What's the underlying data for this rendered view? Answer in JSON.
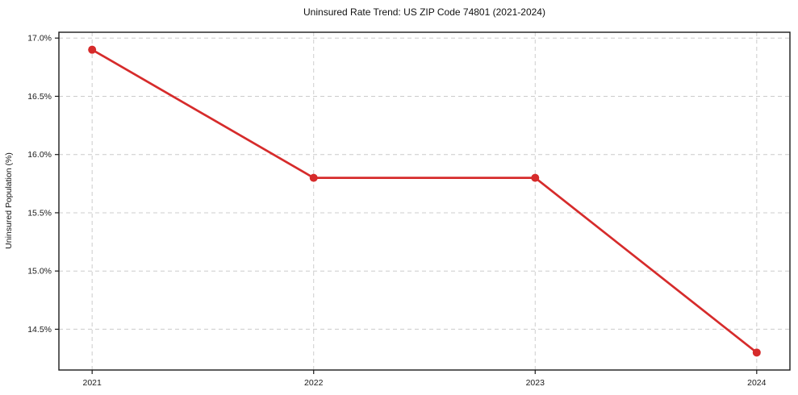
{
  "page": {
    "background": "#ffffff"
  },
  "chart_data": {
    "type": "line",
    "title": "Uninsured Rate Trend: US ZIP Code 74801 (2021-2024)",
    "xlabel": "",
    "ylabel": "Uninsured Population (%)",
    "x": [
      2021,
      2022,
      2023,
      2024
    ],
    "series": [
      {
        "name": "Uninsured rate",
        "values": [
          16.9,
          15.8,
          15.8,
          14.3
        ],
        "color": "#d62b2b"
      }
    ],
    "xlim": [
      2020.85,
      2024.15
    ],
    "ylim": [
      14.15,
      17.05
    ],
    "xticks": {
      "values": [
        2021,
        2022,
        2023,
        2024
      ],
      "labels": [
        "2021",
        "2022",
        "2023",
        "2024"
      ]
    },
    "yticks": {
      "values": [
        14.5,
        15.0,
        15.5,
        16.0,
        16.5,
        17.0
      ],
      "labels": [
        "14.5%",
        "15.0%",
        "15.5%",
        "16.0%",
        "16.5%",
        "17.0%"
      ]
    },
    "grid": true,
    "grid_color": "#cccccc",
    "spine_color": "#1a1a1a",
    "legend": "none",
    "line_width": 2.7,
    "marker_size": 5
  }
}
